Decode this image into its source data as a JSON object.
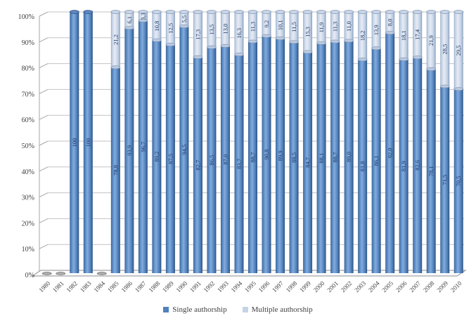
{
  "chart_data": {
    "type": "bar",
    "stacked": true,
    "title": "",
    "xlabel": "",
    "ylabel": "",
    "ylim": [
      0,
      100
    ],
    "grid": true,
    "legend_position": "bottom",
    "y_ticks": [
      "0%",
      "10%",
      "20%",
      "30%",
      "40%",
      "50%",
      "60%",
      "70%",
      "80%",
      "90%",
      "100%"
    ],
    "categories": [
      "1980",
      "1981",
      "1982",
      "1983",
      "1984",
      "1985",
      "1986",
      "1987",
      "1988",
      "1989",
      "1990",
      "1991",
      "1992",
      "1993",
      "1994",
      "1995",
      "1996",
      "1997",
      "1998",
      "1999",
      "2000",
      "2001",
      "2002",
      "2003",
      "2004",
      "2005",
      "2006",
      "2007",
      "2008",
      "2009",
      "2010"
    ],
    "series": [
      {
        "name": "Single authorship",
        "color": "#4F81BD",
        "values": [
          null,
          null,
          100,
          100,
          null,
          78.8,
          93.9,
          96.7,
          89.2,
          87.5,
          94.5,
          82.7,
          86.5,
          87.0,
          83.7,
          88.7,
          90.8,
          89.9,
          88.5,
          84.7,
          88.1,
          88.7,
          89.0,
          81.8,
          86.1,
          92.0,
          81.9,
          82.6,
          78.1,
          71.5,
          70.5
        ],
        "labels": [
          "",
          "",
          "100",
          "100",
          "",
          "78,8",
          "93,9",
          "96,7",
          "89,2",
          "87,5",
          "94,5",
          "82,7",
          "86,5",
          "87,0",
          "83,7",
          "88,7",
          "90,8",
          "89,9",
          "88,5",
          "84,7",
          "88,1",
          "88,7",
          "89,0",
          "81,8",
          "86,1",
          "92,0",
          "81,9",
          "82,6",
          "78,1",
          "71,5",
          "70,5"
        ]
      },
      {
        "name": "Multiple authorship",
        "color": "#C5D3E6",
        "values": [
          null,
          null,
          0,
          0,
          null,
          21.2,
          6.1,
          3.3,
          10.8,
          12.5,
          5.5,
          17.3,
          13.5,
          13.0,
          16.3,
          11.3,
          9.2,
          10.1,
          11.5,
          15.3,
          11.9,
          11.3,
          11.0,
          18.2,
          13.9,
          8.0,
          18.1,
          17.4,
          21.9,
          28.5,
          29.5
        ],
        "labels": [
          "",
          "",
          "",
          "",
          "",
          "21,2",
          "6,1",
          "3,3",
          "10,8",
          "12,5",
          "5,5",
          "17,3",
          "13,5",
          "13,0",
          "16,3",
          "11,3",
          "9,2",
          "10,1",
          "11,5",
          "15,3",
          "11,9",
          "11,3",
          "11,0",
          "18,2",
          "13,9",
          "8,0",
          "18,1",
          "17,4",
          "21,9",
          "28,5",
          "29,5"
        ]
      }
    ]
  },
  "colors": {
    "grid_line": "#C3C3C3",
    "axis_line": "#A6A6A6",
    "floor_stroke": "#8C8C8C",
    "label_text": "#1F3864",
    "tick_text": "#3F3F3F"
  }
}
